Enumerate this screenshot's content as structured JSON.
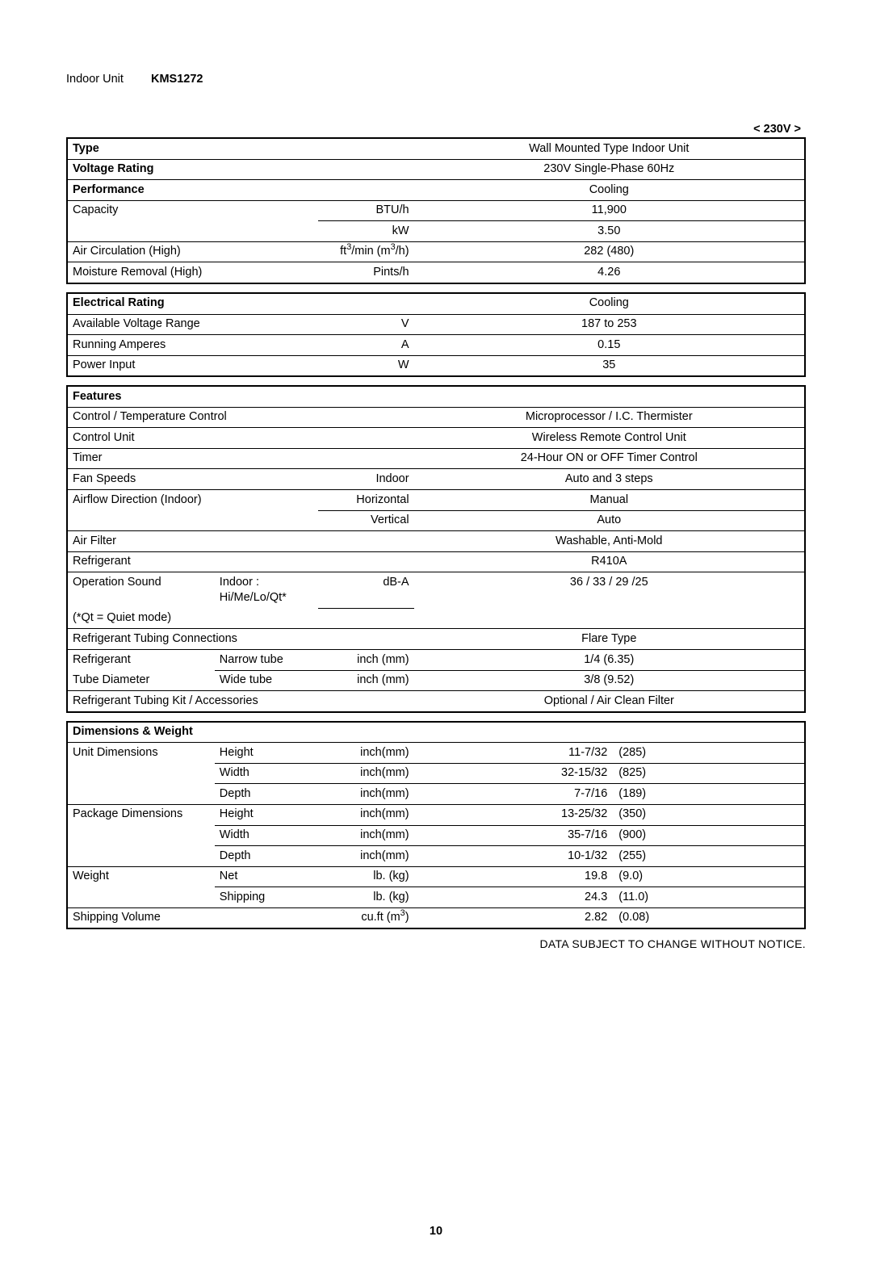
{
  "header": {
    "unit_label": "Indoor Unit",
    "model": "KMS1272",
    "voltage_tag": "<  230V  >"
  },
  "colwidths": {
    "c1": "20%",
    "c2": "14%",
    "c3": "13%",
    "c4": "53%"
  },
  "section1": {
    "type_label": "Type",
    "type_value": "Wall Mounted Type Indoor Unit",
    "voltage_label": "Voltage  Rating",
    "voltage_value": "230V Single-Phase 60Hz",
    "perf_label": "Performance",
    "perf_header": "Cooling",
    "rows": [
      {
        "label": "Capacity",
        "unit": "BTU/h",
        "value": "11,900",
        "label_noborder_bot": true
      },
      {
        "label": "",
        "unit": "kW",
        "value": "3.50",
        "label_noborder_top": true
      },
      {
        "label": "Air Circulation  (High)",
        "unit_html": "ft<sup>3</sup>/min (m<sup>3</sup>/h)",
        "value": "282 (480)"
      },
      {
        "label": "Moisture Removal  (High)",
        "unit": "Pints/h",
        "value": "4.26"
      }
    ]
  },
  "section2": {
    "header_label": "Electrical  Rating",
    "header_value": "Cooling",
    "rows": [
      {
        "label": "Available Voltage Range",
        "unit": "V",
        "value": "187 to 253"
      },
      {
        "label": "Running Amperes",
        "unit": "A",
        "value": "0.15"
      },
      {
        "label": "Power Input",
        "unit": "W",
        "value": "35"
      }
    ]
  },
  "section3": {
    "header_label": "Features",
    "rows": [
      {
        "label": "Control / Temperature Control",
        "span": 3,
        "value": "Microprocessor / I.C. Thermister"
      },
      {
        "label": "Control Unit",
        "span": 3,
        "value": "Wireless Remote Control Unit"
      },
      {
        "label": "Timer",
        "span": 3,
        "value": "24-Hour ON or OFF Timer Control"
      },
      {
        "label": "Fan Speeds",
        "span": 2,
        "unit": "Indoor",
        "value": "Auto and 3 steps"
      },
      {
        "label": "Airflow Direction (Indoor)",
        "span": 2,
        "unit": "Horizontal",
        "value": "Manual",
        "label_noborder_bot": true
      },
      {
        "label": "",
        "span": 2,
        "unit": "Vertical",
        "value": "Auto",
        "label_noborder_top": true
      },
      {
        "label": "Air Filter",
        "span": 3,
        "value": "Washable, Anti-Mold"
      },
      {
        "label": "Refrigerant",
        "span": 3,
        "value": "R410A"
      },
      {
        "label": "Operation Sound",
        "mid": "Indoor : Hi/Me/Lo/Qt*",
        "unit": "dB-A",
        "value": "36 / 33 / 29 /25",
        "label_noborder_bot": true,
        "mid_noborder_bot": true,
        "val_noborder_bot": true
      },
      {
        "label": "(*Qt = Quiet mode)",
        "span": 3,
        "label_noborder_top": true,
        "value": "",
        "val_noborder_top": true
      },
      {
        "label": "Refrigerant Tubing Connections",
        "span": 3,
        "value": "Flare Type"
      },
      {
        "label": "Refrigerant",
        "mid": "Narrow tube",
        "unit": "inch (mm)",
        "value": "1/4 (6.35)",
        "label_noborder_bot": true
      },
      {
        "label": "Tube Diameter",
        "mid": "Wide tube",
        "unit": "inch (mm)",
        "value": "3/8 (9.52)",
        "label_noborder_top": true
      },
      {
        "label": "Refrigerant Tubing Kit / Accessories",
        "span": 3,
        "value": "Optional / Air Clean Filter"
      }
    ]
  },
  "section4": {
    "header_label": "Dimensions  &  Weight",
    "rows": [
      {
        "label": "Unit Dimensions",
        "mid": "Height",
        "unit": "inch(mm)",
        "v1": "11-7/32",
        "v2": "(285)",
        "label_noborder_bot": true
      },
      {
        "label": "",
        "mid": "Width",
        "unit": "inch(mm)",
        "v1": "32-15/32",
        "v2": "(825)",
        "label_noborder_top": true,
        "label_noborder_bot": true
      },
      {
        "label": "",
        "mid": "Depth",
        "unit": "inch(mm)",
        "v1": "7-7/16",
        "v2": "(189)",
        "label_noborder_top": true
      },
      {
        "label": "Package Dimensions",
        "mid": "Height",
        "unit": "inch(mm)",
        "v1": "13-25/32",
        "v2": "(350)",
        "label_noborder_bot": true
      },
      {
        "label": "",
        "mid": "Width",
        "unit": "inch(mm)",
        "v1": "35-7/16",
        "v2": "(900)",
        "label_noborder_top": true,
        "label_noborder_bot": true
      },
      {
        "label": "",
        "mid": "Depth",
        "unit": "inch(mm)",
        "v1": "10-1/32",
        "v2": "(255)",
        "label_noborder_top": true
      },
      {
        "label": "Weight",
        "mid": "Net",
        "unit": "lb. (kg)",
        "v1": "19.8",
        "v2": "(9.0)",
        "label_noborder_bot": true
      },
      {
        "label": "",
        "mid": "Shipping",
        "unit": "lb. (kg)",
        "v1": "24.3",
        "v2": "(11.0)",
        "label_noborder_top": true
      },
      {
        "label": "Shipping Volume",
        "span_mid": true,
        "unit_html": "cu.ft (m<sup>3</sup>)",
        "v1": "2.82",
        "v2": "(0.08)"
      }
    ]
  },
  "footer_note": "DATA SUBJECT TO CHANGE WITHOUT NOTICE.",
  "page_number": "10"
}
